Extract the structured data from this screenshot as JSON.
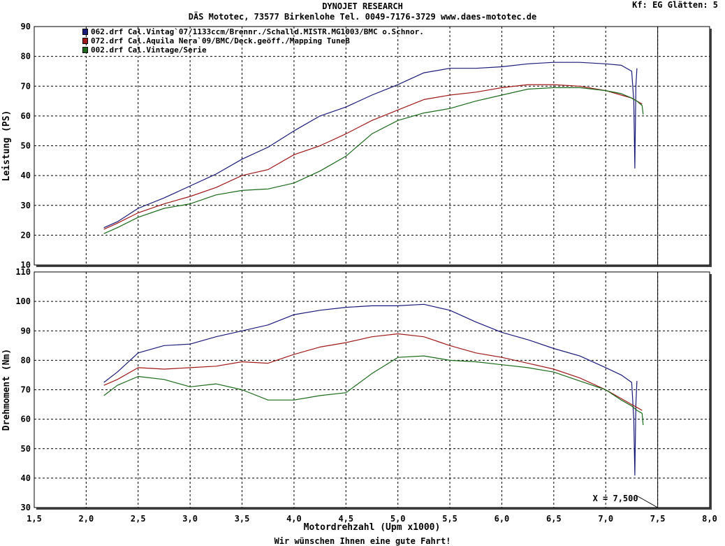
{
  "header": {
    "title": "DYNOJET RESEARCH",
    "subtitle": "DÄS Mototec, 73577 Birkenlohe  Tel. 0049-7176-3729 www.daes-mototec.de",
    "kf": "Kf: EG  Glätten: 5"
  },
  "footer": {
    "text": "Wir wünschen Ihnen eine gute Fahrt!"
  },
  "colors": {
    "run_062": "#1a1a7a",
    "run_072": "#a01818",
    "run_002": "#1a6a1a",
    "grid": "#000000"
  },
  "chart_data": [
    {
      "type": "line",
      "ylabel": "Leistung (PS)",
      "xlabel": "",
      "xlim": [
        1.5,
        8.0
      ],
      "ylim": [
        10,
        90
      ],
      "yticks": [
        "10",
        "20",
        "30",
        "40",
        "50",
        "60",
        "70",
        "80",
        "90"
      ],
      "grid": true,
      "legend_position": "top-left",
      "cursor_x": 7.5,
      "series": [
        {
          "name": "062.drf Cal.Vintag`07/1133ccm/Brennr./Schalld.MISTR.MG1003/BMC o.Schnor.",
          "x": [
            2.17,
            2.3,
            2.5,
            2.75,
            3.0,
            3.25,
            3.5,
            3.75,
            4.0,
            4.25,
            4.5,
            4.75,
            5.0,
            5.25,
            5.5,
            5.75,
            6.0,
            6.25,
            6.5,
            6.75,
            7.0,
            7.15,
            7.25,
            7.27,
            7.28,
            7.29,
            7.3
          ],
          "y": [
            22.5,
            24.5,
            29,
            32.5,
            36.5,
            40.5,
            45.5,
            49.5,
            55,
            60,
            63,
            67,
            70.5,
            74.5,
            76,
            76,
            76.5,
            77.5,
            78,
            78,
            77.5,
            77,
            75,
            65,
            42.5,
            70,
            76
          ]
        },
        {
          "name": "072.drf Cal.Aquila Nera`09/BMC/Deck.geöff./Mapping TuneB",
          "x": [
            2.17,
            2.3,
            2.5,
            2.75,
            3.0,
            3.25,
            3.5,
            3.75,
            4.0,
            4.25,
            4.5,
            4.75,
            5.0,
            5.25,
            5.5,
            5.75,
            6.0,
            6.25,
            6.5,
            6.75,
            7.0,
            7.15,
            7.25,
            7.3,
            7.35
          ],
          "y": [
            22,
            24,
            27.5,
            30.5,
            33,
            36,
            40,
            42,
            47,
            50,
            54,
            58.5,
            62,
            65.5,
            67,
            68,
            69.5,
            70.5,
            70.5,
            70,
            68.5,
            67,
            66,
            65,
            64
          ]
        },
        {
          "name": "002.drf Cal.Vintage/Serie",
          "x": [
            2.17,
            2.3,
            2.5,
            2.75,
            3.0,
            3.25,
            3.5,
            3.75,
            4.0,
            4.25,
            4.5,
            4.75,
            5.0,
            5.25,
            5.5,
            5.75,
            6.0,
            6.25,
            6.5,
            6.75,
            7.0,
            7.15,
            7.25,
            7.3,
            7.35,
            7.36
          ],
          "y": [
            20.5,
            22.5,
            26,
            29,
            30.5,
            33.5,
            35,
            35.5,
            37.5,
            41.5,
            46.5,
            54,
            58.5,
            61,
            62.5,
            65,
            67,
            69,
            69.5,
            69.5,
            68.5,
            67.5,
            66,
            65,
            63.5,
            60.5
          ]
        }
      ]
    },
    {
      "type": "line",
      "ylabel": "Drehmoment (Nm)",
      "xlabel": "Motordrehzahl (Upm x1000)",
      "xlim": [
        1.5,
        8.0
      ],
      "ylim": [
        30,
        110
      ],
      "xticks": [
        "1,5",
        "2,0",
        "2,5",
        "3,0",
        "3,5",
        "4,0",
        "4,5",
        "5,0",
        "5,5",
        "6,0",
        "6,5",
        "7,0",
        "7,5",
        "8,0"
      ],
      "yticks": [
        "30",
        "40",
        "50",
        "60",
        "70",
        "80",
        "90",
        "100",
        "110"
      ],
      "grid": true,
      "cursor_x": 7.5,
      "cursor_label": "X = 7,500",
      "series": [
        {
          "name": "062.drf Cal.Vintag`07/1133ccm/Brennr./Schalld.MISTR.MG1003/BMC o.Schnor.",
          "x": [
            2.17,
            2.3,
            2.5,
            2.75,
            3.0,
            3.25,
            3.5,
            3.75,
            4.0,
            4.25,
            4.5,
            4.75,
            5.0,
            5.25,
            5.5,
            5.75,
            6.0,
            6.25,
            6.5,
            6.75,
            7.0,
            7.15,
            7.25,
            7.27,
            7.28,
            7.29,
            7.3
          ],
          "y": [
            72.5,
            76,
            82.5,
            85,
            85.5,
            88,
            90,
            92,
            95.5,
            97,
            98,
            98.5,
            98.5,
            99,
            97,
            93,
            89.5,
            87,
            84,
            81.5,
            77.5,
            75,
            72.5,
            60,
            41,
            65,
            73
          ]
        },
        {
          "name": "072.drf Cal.Aquila Nera`09/BMC/Deck.geöff./Mapping TuneB",
          "x": [
            2.17,
            2.3,
            2.5,
            2.75,
            3.0,
            3.25,
            3.5,
            3.75,
            4.0,
            4.25,
            4.5,
            4.75,
            5.0,
            5.25,
            5.5,
            5.75,
            6.0,
            6.25,
            6.5,
            6.75,
            7.0,
            7.15,
            7.25,
            7.3,
            7.35
          ],
          "y": [
            71.5,
            73.5,
            77.5,
            77,
            77.5,
            78,
            79.5,
            79,
            82,
            84.5,
            86,
            88,
            89,
            88,
            85,
            82.5,
            81,
            79,
            77,
            74,
            70,
            67,
            65,
            64,
            63
          ]
        },
        {
          "name": "002.drf Cal.Vintage/Serie",
          "x": [
            2.17,
            2.3,
            2.5,
            2.75,
            3.0,
            3.25,
            3.5,
            3.75,
            4.0,
            4.25,
            4.5,
            4.75,
            5.0,
            5.25,
            5.5,
            5.75,
            6.0,
            6.25,
            6.5,
            6.75,
            7.0,
            7.15,
            7.25,
            7.3,
            7.35,
            7.36
          ],
          "y": [
            68,
            71.5,
            74.5,
            73.5,
            71,
            72,
            70,
            66.5,
            66.5,
            68,
            69,
            75.5,
            81,
            81.5,
            80,
            79.5,
            78.5,
            77.5,
            76,
            73,
            70,
            66.5,
            64.5,
            63,
            62,
            58
          ]
        }
      ]
    }
  ]
}
